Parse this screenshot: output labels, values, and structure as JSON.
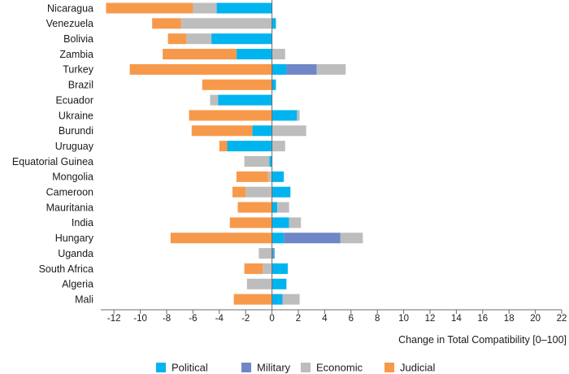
{
  "chart_data": {
    "type": "bar",
    "orientation": "horizontal",
    "stacked": true,
    "title": "",
    "xlabel": "Change in Total Compatibility [0–100]",
    "ylabel": "",
    "xlim": [
      -13,
      22
    ],
    "xticks": [
      -12,
      -10,
      -8,
      -6,
      -4,
      -2,
      0,
      2,
      4,
      6,
      8,
      10,
      12,
      14,
      16,
      18,
      20,
      22
    ],
    "xtick_labels": [
      "-12",
      "-10",
      "-8",
      "-6",
      "-4",
      "-2",
      "0",
      "2",
      "4",
      "6",
      "8",
      "10",
      "12",
      "14",
      "16",
      "18",
      "20",
      "22"
    ],
    "grid": false,
    "legend_position": "bottom",
    "categories": [
      "Nicaragua",
      "Venezuela",
      "Bolivia",
      "Zambia",
      "Turkey",
      "Brazil",
      "Ecuador",
      "Ukraine",
      "Burundi",
      "Uruguay",
      "Equatorial Guinea",
      "Mongolia",
      "Cameroon",
      "Mauritania",
      "India",
      "Hungary",
      "Uganda",
      "South Africa",
      "Algeria",
      "Mali"
    ],
    "series": [
      {
        "name": "Political",
        "color": "#00b4f0",
        "values": [
          -4.2,
          0.3,
          -4.6,
          -2.7,
          1.1,
          0.3,
          -4.1,
          1.9,
          -1.5,
          -3.4,
          -0.2,
          0.9,
          1.4,
          0.4,
          1.3,
          0.9,
          0.1,
          1.2,
          1.1,
          0.8
        ]
      },
      {
        "name": "Military",
        "color": "#6f87c6",
        "values": [
          0,
          0,
          0,
          0,
          2.3,
          0,
          0,
          0,
          0,
          0,
          0,
          0,
          0,
          0,
          0,
          4.3,
          0.1,
          0,
          0,
          0
        ]
      },
      {
        "name": "Economic",
        "color": "#bdbdbd",
        "values": [
          -1.8,
          -6.9,
          -1.9,
          1.0,
          2.2,
          0,
          -0.6,
          0.2,
          2.6,
          1.0,
          -1.9,
          -0.3,
          -2.0,
          0.9,
          0.9,
          1.7,
          -1.0,
          -0.7,
          -1.9,
          1.3
        ]
      },
      {
        "name": "Judicial",
        "color": "#f7994a",
        "values": [
          -6.6,
          -2.2,
          -1.4,
          -5.6,
          -10.8,
          -5.3,
          0,
          -6.3,
          -4.6,
          -0.6,
          0,
          -2.4,
          -1.0,
          -2.6,
          -3.2,
          -7.7,
          0,
          -1.4,
          0,
          -2.9
        ]
      }
    ]
  }
}
